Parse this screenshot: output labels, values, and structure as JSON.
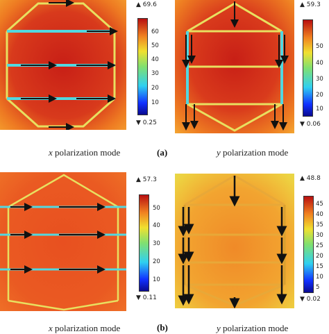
{
  "panel_tag_a": "(a)",
  "panel_tag_b": "(b)",
  "panels": [
    {
      "caption_var": "x",
      "caption_text": " polarization mode",
      "max": "▲ 69.6",
      "min": "▼ 0.25",
      "ticks": [
        "60",
        "50",
        "40",
        "30",
        "20",
        "10"
      ]
    },
    {
      "caption_var": "y",
      "caption_text": "  polarization mode",
      "max": "▲ 59.3",
      "min": "▼ 0.06",
      "ticks": [
        "50",
        "40",
        "30",
        "20",
        "10"
      ]
    },
    {
      "caption_var": "x",
      "caption_text": " polarization mode",
      "max": "▲ 57.3",
      "min": "▼ 0.11",
      "ticks": [
        "50",
        "40",
        "30",
        "20",
        "10"
      ]
    },
    {
      "caption_var": "y",
      "caption_text": "  polarization mode",
      "max": "▲ 48.8",
      "min": "▼ 0.02",
      "ticks": [
        "45",
        "40",
        "35",
        "30",
        "25",
        "20",
        "15",
        "10",
        "5"
      ]
    }
  ],
  "colors": {
    "hot": "#d42a1a",
    "warm": "#f08020",
    "mid": "#f2d230",
    "cyan": "#52d8e0"
  }
}
